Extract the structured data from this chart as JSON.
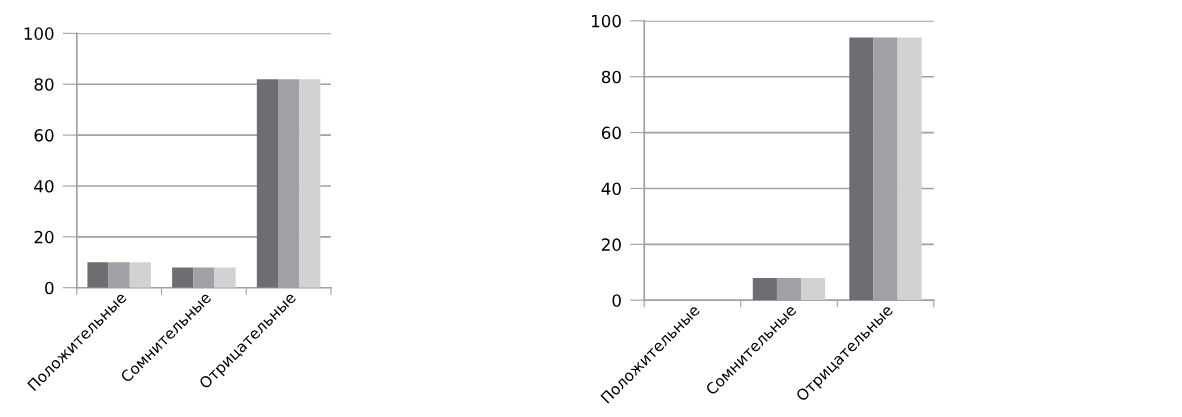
{
  "chart_data": [
    {
      "type": "bar",
      "categories": [
        "Положительные",
        "Сомнительные",
        "Отрицательные"
      ],
      "series": [
        {
          "color": "#6d6e71",
          "values": [
            10,
            8,
            82
          ]
        },
        {
          "color": "#a0a1a4",
          "values": [
            10,
            8,
            82
          ]
        },
        {
          "color": "#d1d2d4",
          "values": [
            10,
            8,
            82
          ]
        }
      ],
      "ylim": [
        0,
        100
      ],
      "yticks": [
        0,
        20,
        40,
        60,
        80,
        100
      ],
      "grid": "y"
    },
    {
      "type": "bar",
      "categories": [
        "Положительные",
        "Сомнительные",
        "Отрицательные"
      ],
      "series": [
        {
          "color": "#6d6e71",
          "values": [
            0,
            8,
            94
          ]
        },
        {
          "color": "#a0a1a4",
          "values": [
            0,
            8,
            94
          ]
        },
        {
          "color": "#d1d2d4",
          "values": [
            0,
            8,
            94
          ]
        }
      ],
      "ylim": [
        0,
        100
      ],
      "yticks": [
        0,
        20,
        40,
        60,
        80,
        100
      ],
      "grid": "y"
    }
  ]
}
